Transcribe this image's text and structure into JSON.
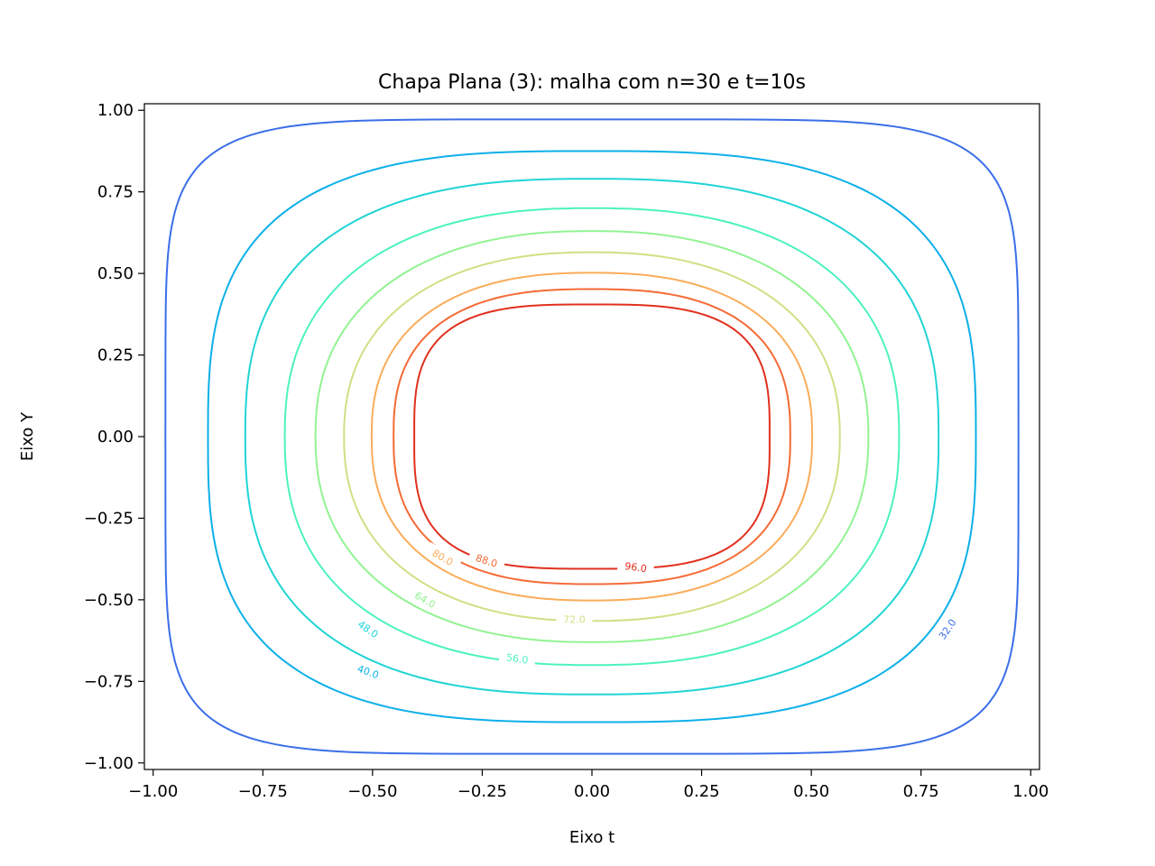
{
  "chart_data": {
    "type": "contour",
    "title": "Chapa Plana (3): malha com n=30 e t=10s",
    "xlabel": "Eixo t",
    "ylabel": "Eixo Y",
    "xlim": [
      -1.02,
      1.02
    ],
    "ylim": [
      -1.02,
      1.02
    ],
    "grid": false,
    "legend": "none",
    "x_ticks": [
      -1.0,
      -0.75,
      -0.5,
      -0.25,
      0.0,
      0.25,
      0.5,
      0.75,
      1.0
    ],
    "x_tick_labels": [
      "−1.00",
      "−0.75",
      "−0.50",
      "−0.25",
      "0.00",
      "0.25",
      "0.50",
      "0.75",
      "1.00"
    ],
    "y_ticks": [
      1.0,
      0.75,
      0.5,
      0.25,
      0.0,
      -0.25,
      -0.5,
      -0.75,
      -1.0
    ],
    "y_tick_labels": [
      "1.00",
      "0.75",
      "0.50",
      "0.25",
      "0.00",
      "−0.25",
      "−0.50",
      "−0.75",
      "−1.00"
    ],
    "levels": [
      {
        "value": 32.0,
        "label": "32.0",
        "color": "#3b6fe8",
        "rx": 0.972,
        "ry": 0.972,
        "p": 6.0
      },
      {
        "value": 40.0,
        "label": "40.0",
        "color": "#0db0e8",
        "rx": 0.875,
        "ry": 0.875,
        "p": 3.0
      },
      {
        "value": 48.0,
        "label": "48.0",
        "color": "#22d4d4",
        "rx": 0.79,
        "ry": 0.79,
        "p": 2.6
      },
      {
        "value": 56.0,
        "label": "56.0",
        "color": "#4df2c0",
        "rx": 0.7,
        "ry": 0.7,
        "p": 2.4
      },
      {
        "value": 64.0,
        "label": "64.0",
        "color": "#92f393",
        "rx": 0.63,
        "ry": 0.63,
        "p": 2.3
      },
      {
        "value": 72.0,
        "label": "72.0",
        "color": "#cfe085",
        "rx": 0.565,
        "ry": 0.565,
        "p": 2.3
      },
      {
        "value": 80.0,
        "label": "80.0",
        "color": "#fbac5a",
        "rx": 0.502,
        "ry": 0.502,
        "p": 2.4
      },
      {
        "value": 88.0,
        "label": "88.0",
        "color": "#f56a36",
        "rx": 0.452,
        "ry": 0.452,
        "p": 2.6
      },
      {
        "value": 96.0,
        "label": "96.0",
        "color": "#e0301e",
        "rx": 0.405,
        "ry": 0.405,
        "p": 3.2
      }
    ],
    "inline_labels": [
      {
        "level": "32.0",
        "x": 0.81,
        "y": -0.59,
        "angle": -55
      },
      {
        "level": "40.0",
        "x": -0.51,
        "y": -0.72,
        "angle": 20
      },
      {
        "level": "48.0",
        "x": -0.51,
        "y": -0.59,
        "angle": 35
      },
      {
        "level": "56.0",
        "x": -0.17,
        "y": -0.68,
        "angle": 8
      },
      {
        "level": "64.0",
        "x": -0.38,
        "y": -0.5,
        "angle": 30
      },
      {
        "level": "72.0",
        "x": -0.04,
        "y": -0.56,
        "angle": 0
      },
      {
        "level": "80.0",
        "x": -0.34,
        "y": -0.37,
        "angle": 30
      },
      {
        "level": "88.0",
        "x": -0.24,
        "y": -0.38,
        "angle": 18
      },
      {
        "level": "96.0",
        "x": 0.1,
        "y": -0.4,
        "angle": 8
      }
    ]
  }
}
